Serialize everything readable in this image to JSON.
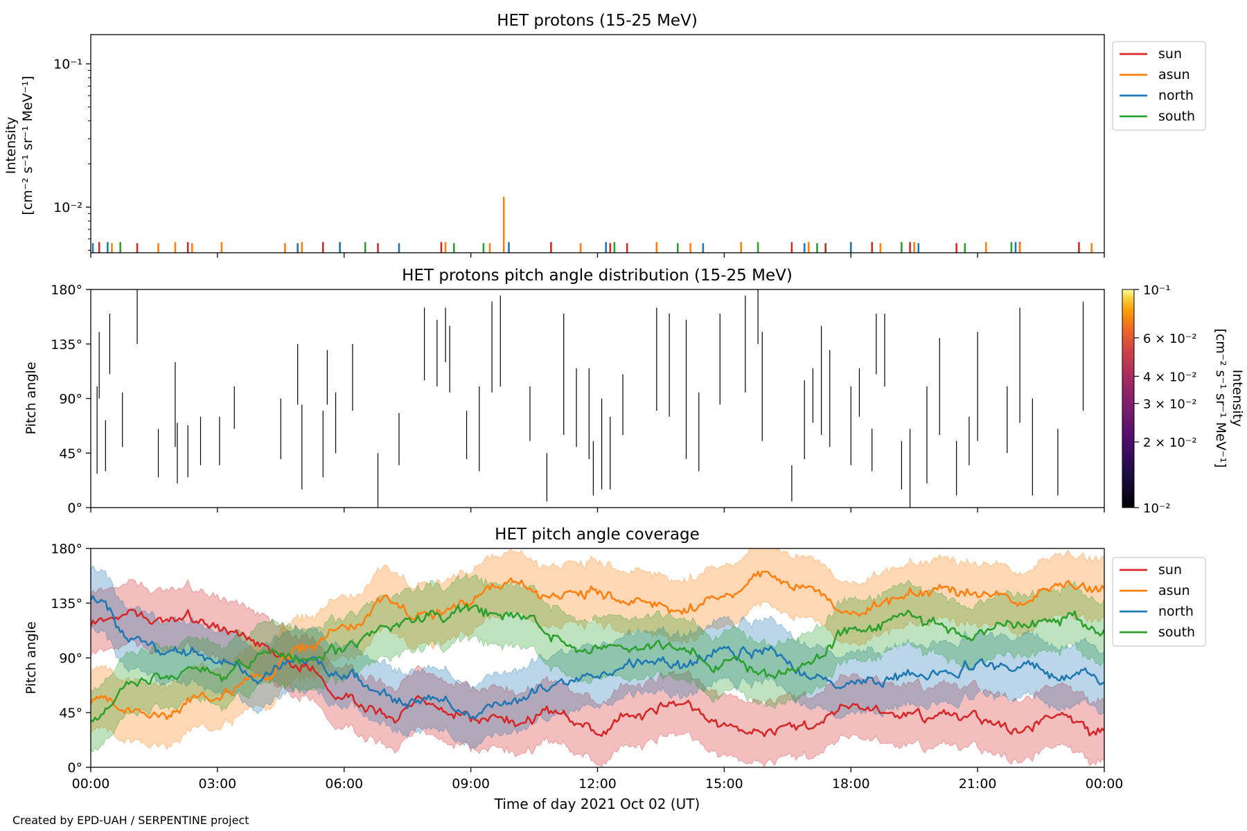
{
  "footer": "Created by EPD-UAH / SERPENTINE project",
  "xaxis": {
    "label": "Time of day 2021 Oct 02 (UT)",
    "ticks": [
      "00:00",
      "03:00",
      "06:00",
      "09:00",
      "12:00",
      "15:00",
      "18:00",
      "21:00",
      "00:00"
    ],
    "range_hours": [
      0,
      24
    ]
  },
  "colors": {
    "sun": "#d62728",
    "asun": "#ff7f0e",
    "north": "#1f77b4",
    "south": "#2ca02c"
  },
  "chart_data": [
    {
      "type": "line",
      "title": "HET protons (15-25 MeV)",
      "ylabel_line1": "Intensity",
      "ylabel_line2": "[cm⁻² s⁻¹ sr⁻¹ MeV⁻¹]",
      "yscale": "log",
      "ylim": [
        0.0048,
        0.16
      ],
      "yticks": [
        "10⁻¹",
        "10⁻²"
      ],
      "legend": {
        "placement": "outside-right-top",
        "entries": [
          "sun",
          "asun",
          "north",
          "south"
        ]
      },
      "series": [
        {
          "name": "sun",
          "spikes": [
            [
              0.2,
              0.0057
            ],
            [
              1.1,
              0.0056
            ],
            [
              2.3,
              0.0057
            ],
            [
              5.5,
              0.0057
            ],
            [
              6.8,
              0.0056
            ],
            [
              8.3,
              0.0057
            ],
            [
              10.9,
              0.0057
            ],
            [
              12.3,
              0.0056
            ],
            [
              12.7,
              0.0056
            ],
            [
              16.6,
              0.0057
            ],
            [
              17.4,
              0.0056
            ],
            [
              18.5,
              0.0057
            ],
            [
              19.4,
              0.0057
            ],
            [
              20.5,
              0.0056
            ],
            [
              22.0,
              0.0057
            ],
            [
              23.4,
              0.0057
            ]
          ]
        },
        {
          "name": "asun",
          "spikes": [
            [
              0.5,
              0.0056
            ],
            [
              1.6,
              0.0056
            ],
            [
              2.0,
              0.0057
            ],
            [
              2.4,
              0.0056
            ],
            [
              3.1,
              0.0057
            ],
            [
              4.6,
              0.0056
            ],
            [
              5.0,
              0.0057
            ],
            [
              5.9,
              0.0056
            ],
            [
              8.4,
              0.0057
            ],
            [
              9.45,
              0.0056
            ],
            [
              9.78,
              0.0118
            ],
            [
              11.6,
              0.0056
            ],
            [
              13.4,
              0.0057
            ],
            [
              14.2,
              0.0056
            ],
            [
              15.4,
              0.0057
            ],
            [
              17.0,
              0.0057
            ],
            [
              18.7,
              0.0056
            ],
            [
              19.5,
              0.0057
            ],
            [
              21.2,
              0.0057
            ],
            [
              22.0,
              0.0056
            ],
            [
              23.7,
              0.0056
            ]
          ]
        },
        {
          "name": "north",
          "spikes": [
            [
              0.05,
              0.0056
            ],
            [
              0.4,
              0.0057
            ],
            [
              4.9,
              0.0056
            ],
            [
              5.9,
              0.0057
            ],
            [
              7.3,
              0.0056
            ],
            [
              9.9,
              0.0057
            ],
            [
              12.2,
              0.0057
            ],
            [
              14.5,
              0.0056
            ],
            [
              16.9,
              0.0056
            ],
            [
              18.0,
              0.0057
            ],
            [
              19.6,
              0.0056
            ],
            [
              21.9,
              0.0057
            ]
          ]
        },
        {
          "name": "south",
          "spikes": [
            [
              0.7,
              0.0057
            ],
            [
              6.5,
              0.0057
            ],
            [
              8.6,
              0.0056
            ],
            [
              9.3,
              0.0056
            ],
            [
              12.4,
              0.0057
            ],
            [
              13.9,
              0.0056
            ],
            [
              15.8,
              0.0057
            ],
            [
              17.2,
              0.0056
            ],
            [
              19.2,
              0.0057
            ],
            [
              20.7,
              0.0056
            ],
            [
              21.8,
              0.0057
            ]
          ]
        }
      ]
    },
    {
      "type": "heatmap",
      "title": "HET protons pitch angle distribution (15-25 MeV)",
      "ylabel": "Pitch angle",
      "ylim": [
        0,
        180
      ],
      "yticks": [
        "0°",
        "45°",
        "90°",
        "135°",
        "180°"
      ],
      "colorbar": {
        "label": "Intensity\n[cm⁻² s⁻¹ sr⁻¹ MeV⁻¹]",
        "scale": "log",
        "range": [
          0.01,
          0.1
        ],
        "ticks": [
          "10⁻²",
          "2 × 10⁻²",
          "3 × 10⁻²",
          "4 × 10⁻²",
          "6 × 10⁻²",
          "10⁻¹"
        ],
        "tick_values": [
          0.01,
          0.02,
          0.03,
          0.04,
          0.06,
          0.1
        ]
      },
      "segments": [
        [
          0.15,
          28,
          100
        ],
        [
          0.2,
          90,
          145
        ],
        [
          0.35,
          30,
          72
        ],
        [
          0.45,
          110,
          160
        ],
        [
          0.75,
          50,
          95
        ],
        [
          1.1,
          135,
          180
        ],
        [
          1.6,
          25,
          65
        ],
        [
          2.0,
          50,
          120
        ],
        [
          2.05,
          20,
          70
        ],
        [
          2.3,
          25,
          68
        ],
        [
          2.6,
          35,
          75
        ],
        [
          3.05,
          35,
          75
        ],
        [
          3.4,
          65,
          100
        ],
        [
          4.5,
          40,
          90
        ],
        [
          4.9,
          85,
          135
        ],
        [
          5.0,
          15,
          85
        ],
        [
          5.5,
          25,
          80
        ],
        [
          5.6,
          85,
          130
        ],
        [
          5.8,
          45,
          95
        ],
        [
          6.2,
          80,
          135
        ],
        [
          6.8,
          0,
          45
        ],
        [
          7.3,
          35,
          78
        ],
        [
          7.9,
          105,
          165
        ],
        [
          8.2,
          100,
          155
        ],
        [
          8.4,
          120,
          165
        ],
        [
          8.5,
          95,
          150
        ],
        [
          8.9,
          40,
          80
        ],
        [
          9.2,
          30,
          100
        ],
        [
          9.5,
          95,
          170
        ],
        [
          9.7,
          100,
          175
        ],
        [
          10.4,
          55,
          100
        ],
        [
          10.8,
          5,
          45
        ],
        [
          11.2,
          60,
          160
        ],
        [
          11.5,
          50,
          115
        ],
        [
          11.8,
          40,
          115
        ],
        [
          11.9,
          10,
          55
        ],
        [
          12.1,
          15,
          90
        ],
        [
          12.3,
          15,
          75
        ],
        [
          12.6,
          60,
          110
        ],
        [
          13.4,
          80,
          165
        ],
        [
          13.7,
          75,
          160
        ],
        [
          14.1,
          40,
          155
        ],
        [
          14.4,
          30,
          95
        ],
        [
          14.9,
          85,
          160
        ],
        [
          15.5,
          95,
          175
        ],
        [
          15.8,
          135,
          180
        ],
        [
          15.9,
          55,
          145
        ],
        [
          16.6,
          5,
          35
        ],
        [
          16.9,
          40,
          105
        ],
        [
          17.1,
          70,
          115
        ],
        [
          17.3,
          60,
          150
        ],
        [
          17.5,
          50,
          130
        ],
        [
          18.0,
          35,
          100
        ],
        [
          18.2,
          75,
          115
        ],
        [
          18.5,
          30,
          65
        ],
        [
          18.6,
          110,
          160
        ],
        [
          18.8,
          100,
          160
        ],
        [
          19.2,
          15,
          55
        ],
        [
          19.4,
          0,
          65
        ],
        [
          19.8,
          20,
          100
        ],
        [
          20.1,
          60,
          140
        ],
        [
          20.5,
          10,
          55
        ],
        [
          20.8,
          35,
          75
        ],
        [
          21.0,
          55,
          145
        ],
        [
          21.7,
          45,
          100
        ],
        [
          22.0,
          70,
          165
        ],
        [
          22.3,
          10,
          90
        ],
        [
          22.9,
          10,
          65
        ],
        [
          23.5,
          80,
          170
        ]
      ]
    },
    {
      "type": "line",
      "title": "HET pitch angle coverage",
      "ylabel": "Pitch angle",
      "ylim": [
        0,
        180
      ],
      "yticks": [
        "0°",
        "45°",
        "90°",
        "135°",
        "180°"
      ],
      "legend": {
        "placement": "outside-right-top",
        "entries": [
          "sun",
          "asun",
          "north",
          "south"
        ]
      },
      "band_halfwidth_deg": 25,
      "series": [
        {
          "name": "sun",
          "x": [
            0,
            1,
            2,
            3,
            4,
            5,
            6,
            7,
            8,
            9,
            10,
            11,
            12,
            13,
            14,
            15,
            16,
            17,
            18,
            19,
            20,
            21,
            22,
            23,
            24
          ],
          "values": [
            120,
            130,
            122,
            118,
            105,
            85,
            55,
            45,
            48,
            40,
            35,
            42,
            30,
            45,
            55,
            35,
            22,
            32,
            52,
            45,
            40,
            38,
            32,
            40,
            28
          ]
        },
        {
          "name": "asun",
          "x": [
            0,
            1,
            2,
            3,
            4,
            5,
            6,
            7,
            8,
            9,
            10,
            11,
            12,
            13,
            14,
            15,
            16,
            17,
            18,
            19,
            20,
            21,
            22,
            23,
            24
          ],
          "values": [
            55,
            40,
            50,
            55,
            75,
            95,
            115,
            135,
            125,
            140,
            150,
            140,
            145,
            140,
            125,
            140,
            160,
            150,
            130,
            140,
            145,
            145,
            140,
            150,
            145
          ]
        },
        {
          "name": "north",
          "x": [
            0,
            1,
            2,
            3,
            4,
            5,
            6,
            7,
            8,
            9,
            10,
            11,
            12,
            13,
            14,
            15,
            16,
            17,
            18,
            19,
            20,
            21,
            22,
            23,
            24
          ],
          "values": [
            140,
            105,
            95,
            85,
            75,
            85,
            75,
            60,
            55,
            45,
            50,
            70,
            75,
            90,
            85,
            95,
            100,
            75,
            70,
            75,
            80,
            85,
            78,
            75,
            70
          ]
        },
        {
          "name": "south",
          "x": [
            0,
            1,
            2,
            3,
            4,
            5,
            6,
            7,
            8,
            9,
            10,
            11,
            12,
            13,
            14,
            15,
            16,
            17,
            18,
            19,
            20,
            21,
            22,
            23,
            24
          ],
          "values": [
            40,
            70,
            75,
            80,
            90,
            92,
            100,
            115,
            125,
            130,
            125,
            110,
            95,
            98,
            100,
            85,
            75,
            85,
            115,
            120,
            115,
            110,
            120,
            125,
            110
          ]
        }
      ]
    }
  ]
}
